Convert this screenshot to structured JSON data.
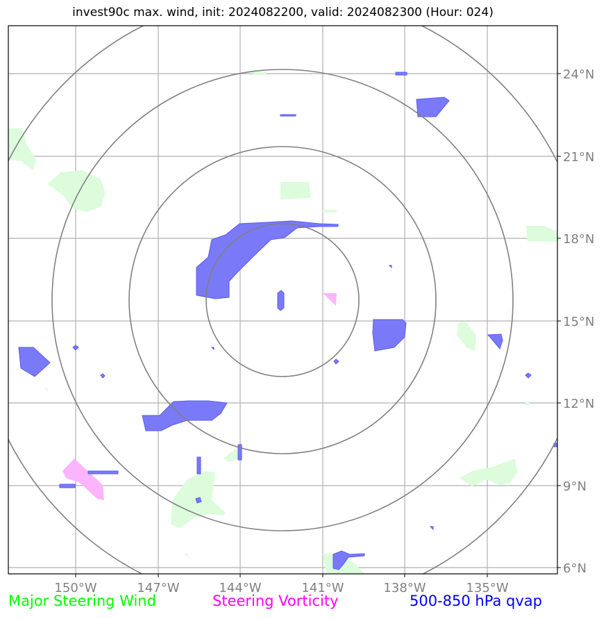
{
  "title": "invest90c max. wind, init: 2024082200, valid: 2024082300 (Hour: 024)",
  "map": {
    "lon_ticks": [
      "150°W",
      "147°W",
      "144°W",
      "141°W",
      "138°W",
      "135°W"
    ],
    "lat_ticks": [
      "24°N",
      "21°N",
      "18°N",
      "15°N",
      "12°N",
      "9°N",
      "6°N"
    ],
    "colors": {
      "steering_wind": "#dcfcdc",
      "vorticity": "#fcb4fc",
      "qvap": "#7a7af8",
      "qvap_edge": "#5a5af0",
      "rings": "#808080",
      "grid": "#b0b0b0"
    }
  },
  "legend": {
    "steering_wind": {
      "label": "Major Steering Wind",
      "color": "#00ff00"
    },
    "vorticity": {
      "label": "Steering Vorticity",
      "color": "#ff00ff"
    },
    "qvap": {
      "label": "500-850 hPa qvap",
      "color": "#0000ff"
    }
  }
}
